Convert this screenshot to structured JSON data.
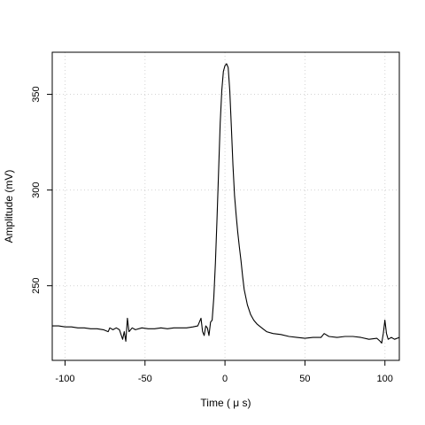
{
  "chart_data": {
    "type": "line",
    "xlabel": "Time ( μ s)",
    "ylabel": "Amplitude (mV)",
    "xlim": [
      -108,
      109
    ],
    "ylim": [
      211,
      372
    ],
    "x_ticks": [
      -100,
      -50,
      0,
      50,
      100
    ],
    "y_ticks": [
      250,
      300,
      350
    ],
    "x_tick_labels": [
      "-100",
      "-50",
      "0",
      "50",
      "100"
    ],
    "y_tick_labels": [
      "250",
      "300",
      "350"
    ],
    "grid": true,
    "grid_style": "dotted",
    "line_color": "#000000",
    "series": [
      {
        "x": [
          -108,
          -104,
          -100,
          -96,
          -92,
          -88,
          -84,
          -80,
          -76,
          -73,
          -72,
          -70,
          -68,
          -66,
          -64,
          -63,
          -62,
          -61,
          -60,
          -58,
          -56,
          -52,
          -48,
          -44,
          -40,
          -36,
          -32,
          -28,
          -24,
          -20,
          -17,
          -15,
          -14,
          -13,
          -12,
          -11,
          -10,
          -9,
          -8,
          -7,
          -6,
          -5,
          -4,
          -3,
          -2,
          -1,
          0,
          1,
          2,
          3,
          4,
          5,
          6,
          7,
          8,
          9,
          10,
          11,
          12,
          14,
          16,
          18,
          20,
          23,
          26,
          30,
          35,
          40,
          45,
          50,
          55,
          60,
          62,
          65,
          70,
          75,
          80,
          85,
          90,
          95,
          97,
          98,
          99,
          100,
          101,
          102,
          104,
          106,
          109
        ],
        "y": [
          229,
          229,
          228.5,
          228.5,
          228,
          228,
          227.5,
          227.5,
          227,
          226,
          228,
          227,
          228,
          227,
          222,
          226,
          221,
          233,
          226,
          228,
          227,
          228,
          227.5,
          227.5,
          228,
          227.5,
          228,
          228,
          228,
          228.5,
          229,
          233,
          226,
          224,
          229,
          228,
          224,
          231,
          232,
          244,
          262,
          285,
          310,
          335,
          352,
          362,
          365,
          366,
          364,
          352,
          333,
          313,
          297,
          287,
          278,
          270,
          263,
          255,
          248,
          240,
          235,
          232,
          230,
          228,
          226,
          225,
          224.5,
          223.5,
          223,
          222.5,
          223,
          223,
          225,
          223.5,
          223,
          223.5,
          223.5,
          223,
          222,
          222.5,
          221,
          220,
          225,
          232,
          225,
          222,
          223,
          222,
          223
        ]
      }
    ]
  }
}
